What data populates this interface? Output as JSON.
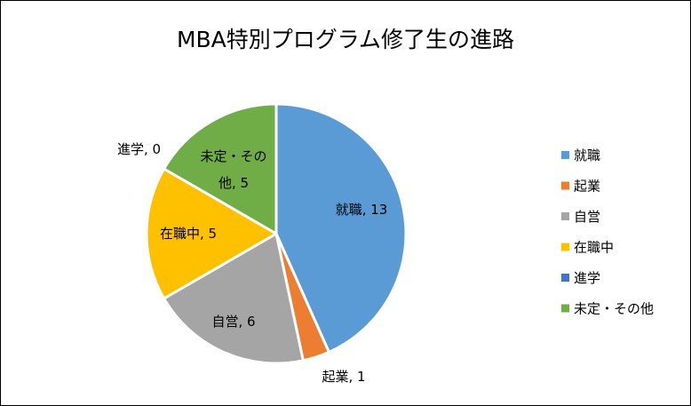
{
  "chart_data": {
    "type": "pie",
    "title": "MBA特別プログラム修了生の進路",
    "categories": [
      "就職",
      "起業",
      "自営",
      "在職中",
      "進学",
      "未定・その他"
    ],
    "values": [
      13,
      1,
      6,
      5,
      0,
      5
    ],
    "colors": [
      "#5B9BD5",
      "#ED7D31",
      "#A5A5A5",
      "#FFC000",
      "#4472C4",
      "#70AD47"
    ],
    "data_labels": [
      "就職, 13",
      "起業, 1",
      "自営, 6",
      "在職中, 5",
      "進学, 0",
      [
        "未定・その",
        "他, 5"
      ]
    ],
    "legend_position": "right"
  }
}
